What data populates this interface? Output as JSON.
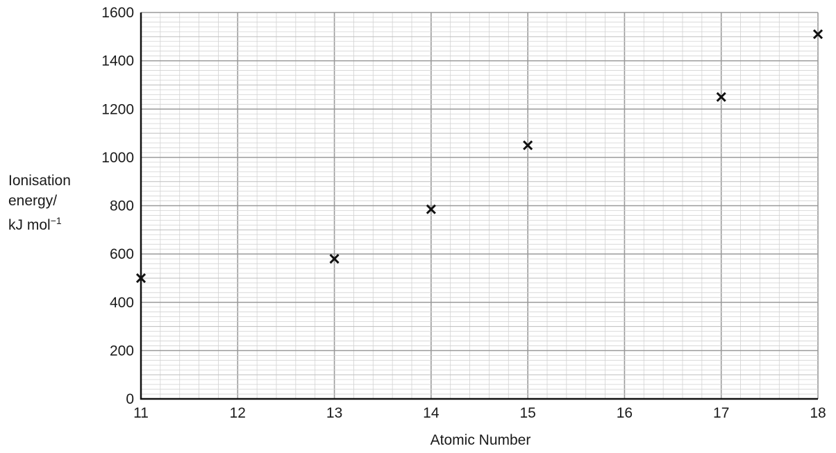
{
  "chart_data": {
    "type": "scatter",
    "title": "",
    "xlabel": "Atomic Number",
    "ylabel_lines": [
      "Ionisation",
      "energy/",
      "kJ mol"
    ],
    "ylabel_unit_exponent": "−1",
    "x_ticks": [
      "11",
      "12",
      "13",
      "14",
      "15",
      "16",
      "17",
      "18"
    ],
    "y_ticks": [
      "0",
      "200",
      "400",
      "600",
      "800",
      "1000",
      "1200",
      "1400",
      "1600"
    ],
    "xlim": [
      11,
      18
    ],
    "ylim": [
      0,
      1600
    ],
    "grid": true,
    "marker": "x",
    "series": [
      {
        "points": [
          {
            "x": 11,
            "y": 500
          },
          {
            "x": 13,
            "y": 580
          },
          {
            "x": 14,
            "y": 785
          },
          {
            "x": 15,
            "y": 1050
          },
          {
            "x": 17,
            "y": 1250
          },
          {
            "x": 18,
            "y": 1510
          }
        ]
      }
    ]
  }
}
